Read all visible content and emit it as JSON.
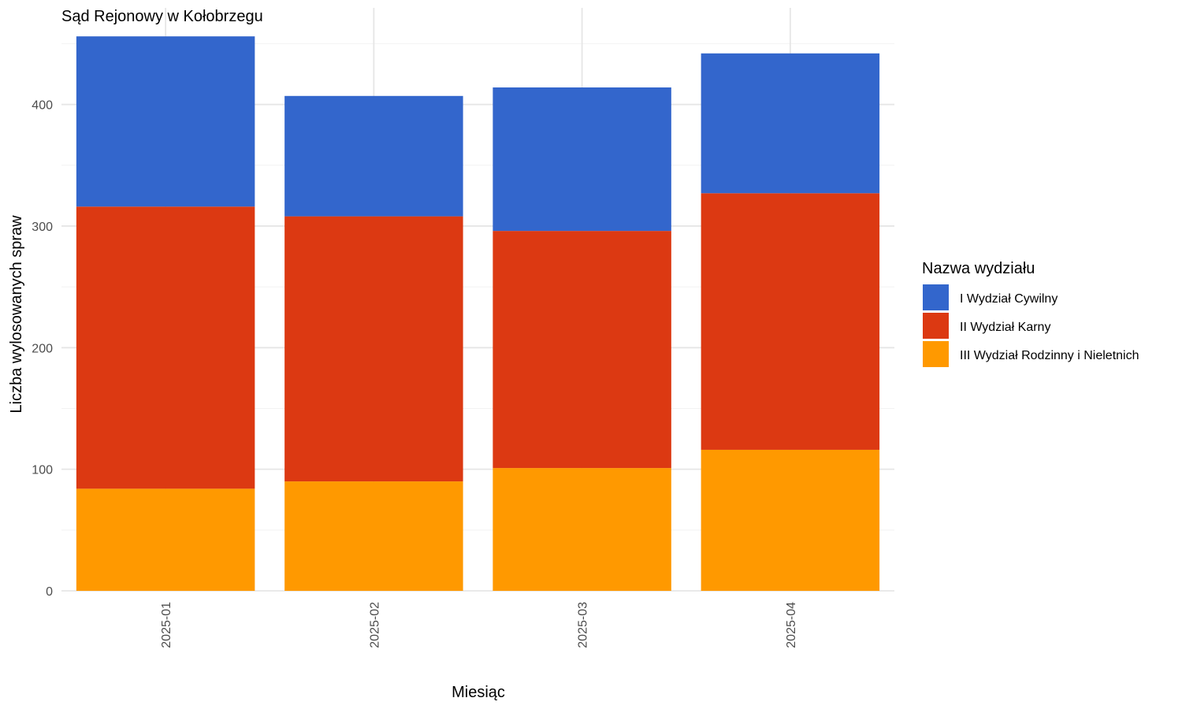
{
  "chart_data": {
    "type": "bar",
    "stacked": true,
    "title": "Sąd Rejonowy w Kołobrzegu",
    "xlabel": "Miesiąc",
    "ylabel": "Liczba wylosowanych spraw",
    "categories": [
      "2025-01",
      "2025-02",
      "2025-03",
      "2025-04"
    ],
    "ylim": [
      0,
      475
    ],
    "yticks": [
      0,
      100,
      200,
      300,
      400
    ],
    "grid": true,
    "legend": {
      "title": "Nazwa wydziału",
      "position": "right"
    },
    "series": [
      {
        "name": "I Wydział Cywilny",
        "color": "#3366CC",
        "values": [
          140,
          99,
          118,
          115
        ]
      },
      {
        "name": "II Wydział Karny",
        "color": "#DC3912",
        "values": [
          232,
          218,
          195,
          211
        ]
      },
      {
        "name": "III Wydział Rodzinny i Nieletnich",
        "color": "#FF9900",
        "values": [
          84,
          90,
          101,
          116
        ]
      }
    ]
  }
}
